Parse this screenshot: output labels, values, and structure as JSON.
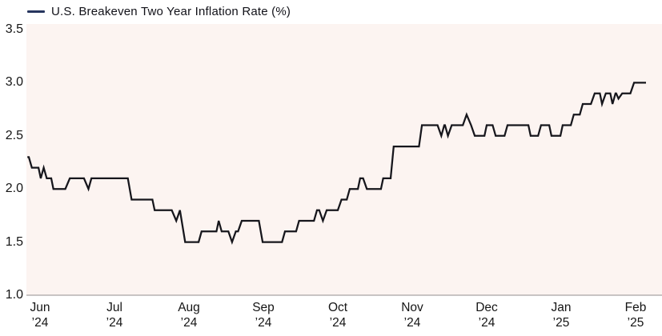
{
  "legend": {
    "label": "U.S. Breakeven Two Year Inflation Rate (%)",
    "line_color": "#26355e"
  },
  "chart_data": {
    "type": "line",
    "title": "U.S. Breakeven Two Year Inflation Rate (%)",
    "xlabel": "",
    "ylabel": "",
    "ylim": [
      1.0,
      3.5
    ],
    "grid": false,
    "legend_position": "top-left",
    "ytick_labels": [
      "3.5",
      "3.0",
      "2.5",
      "2.0",
      "1.5",
      "1.0"
    ],
    "ytick_values": [
      3.5,
      3.0,
      2.5,
      2.0,
      1.5,
      1.0
    ],
    "xtick_labels": [
      {
        "month": "Jun",
        "year": "’24"
      },
      {
        "month": "Jul",
        "year": "’24"
      },
      {
        "month": "Aug",
        "year": "’24"
      },
      {
        "month": "Sep",
        "year": "’24"
      },
      {
        "month": "Oct",
        "year": "’24"
      },
      {
        "month": "Nov",
        "year": "’24"
      },
      {
        "month": "Dec",
        "year": "’24"
      },
      {
        "month": "Jan",
        "year": "’25"
      },
      {
        "month": "Feb",
        "year": "’25"
      }
    ],
    "colors": {
      "series_line": "#16161c",
      "legend_dash": "#26355e",
      "plot_background": "#fcf4f1",
      "axis_line": "#a8a5a3",
      "label_text": "#151515"
    },
    "x_unit_note": "t = fractional months after Jun 1 2024; value = breakeven inflation rate in percent",
    "series": [
      {
        "name": "U.S. Breakeven Two Year Inflation Rate (%)",
        "step_segments": [
          [
            -0.17,
            -0.15,
            2.3
          ],
          [
            -0.11,
            -0.02,
            2.2
          ],
          [
            0.01,
            0.01,
            2.1
          ],
          [
            0.05,
            0.05,
            2.2
          ],
          [
            0.09,
            0.15,
            2.1
          ],
          [
            0.18,
            0.34,
            2.0
          ],
          [
            0.4,
            0.59,
            2.1
          ],
          [
            0.65,
            0.65,
            2.0
          ],
          [
            0.69,
            1.18,
            2.1
          ],
          [
            1.23,
            1.51,
            1.9
          ],
          [
            1.54,
            1.77,
            1.8
          ],
          [
            1.83,
            1.83,
            1.7
          ],
          [
            1.88,
            1.88,
            1.8
          ],
          [
            1.95,
            2.13,
            1.5
          ],
          [
            2.17,
            2.37,
            1.6
          ],
          [
            2.4,
            2.4,
            1.7
          ],
          [
            2.44,
            2.53,
            1.6
          ],
          [
            2.58,
            2.58,
            1.5
          ],
          [
            2.63,
            2.66,
            1.6
          ],
          [
            2.71,
            2.94,
            1.7
          ],
          [
            2.99,
            3.25,
            1.5
          ],
          [
            3.29,
            3.44,
            1.6
          ],
          [
            3.48,
            3.68,
            1.7
          ],
          [
            3.72,
            3.75,
            1.8
          ],
          [
            3.8,
            3.8,
            1.7
          ],
          [
            3.85,
            4.0,
            1.8
          ],
          [
            4.05,
            4.12,
            1.9
          ],
          [
            4.16,
            4.27,
            2.0
          ],
          [
            4.3,
            4.34,
            2.1
          ],
          [
            4.39,
            4.58,
            2.0
          ],
          [
            4.61,
            4.71,
            2.1
          ],
          [
            4.75,
            5.09,
            2.4
          ],
          [
            5.13,
            5.34,
            2.6
          ],
          [
            5.39,
            5.39,
            2.5
          ],
          [
            5.43,
            5.44,
            2.6
          ],
          [
            5.48,
            5.48,
            2.5
          ],
          [
            5.53,
            5.68,
            2.6
          ],
          [
            5.73,
            5.73,
            2.7
          ],
          [
            5.79,
            5.79,
            2.6
          ],
          [
            5.84,
            5.97,
            2.5
          ],
          [
            6.0,
            6.08,
            2.6
          ],
          [
            6.12,
            6.24,
            2.5
          ],
          [
            6.28,
            6.56,
            2.6
          ],
          [
            6.59,
            6.69,
            2.5
          ],
          [
            6.73,
            6.84,
            2.6
          ],
          [
            6.87,
            6.99,
            2.5
          ],
          [
            7.02,
            7.13,
            2.6
          ],
          [
            7.17,
            7.25,
            2.7
          ],
          [
            7.29,
            7.4,
            2.8
          ],
          [
            7.45,
            7.52,
            2.9
          ],
          [
            7.55,
            7.55,
            2.8
          ],
          [
            7.6,
            7.66,
            2.9
          ],
          [
            7.69,
            7.69,
            2.8
          ],
          [
            7.73,
            7.74,
            2.9
          ],
          [
            7.77,
            7.77,
            2.85
          ],
          [
            7.82,
            7.93,
            2.9
          ],
          [
            7.98,
            8.14,
            3.0
          ]
        ]
      }
    ]
  }
}
